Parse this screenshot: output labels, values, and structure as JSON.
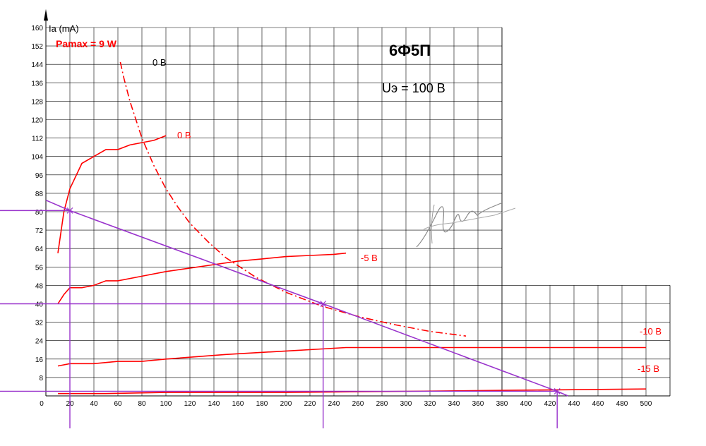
{
  "chart_data": {
    "type": "line",
    "title": "6Ф5П",
    "subtitle": "Uэ = 100 В",
    "ylabel": "Ia (mA)",
    "xlabel": "",
    "xlim": [
      0,
      520
    ],
    "ylim": [
      0,
      160
    ],
    "x_ticks": [
      0,
      20,
      40,
      60,
      80,
      100,
      120,
      140,
      160,
      180,
      200,
      220,
      240,
      260,
      280,
      300,
      320,
      340,
      360,
      380,
      400,
      420,
      440,
      460,
      480,
      500
    ],
    "y_ticks": [
      8,
      16,
      24,
      32,
      40,
      48,
      56,
      64,
      72,
      80,
      88,
      96,
      104,
      112,
      120,
      128,
      136,
      144,
      152,
      160
    ],
    "pmax_label": "Pamax = 9 W",
    "annotation_black_0v": "0 B",
    "colors": {
      "curve": "#ff0000",
      "loadline": "#9933cc",
      "grid": "#000000"
    },
    "series": [
      {
        "name": "0 B",
        "label": "0 B",
        "x": [
          10,
          15,
          20,
          30,
          40,
          50,
          60,
          70,
          80,
          90,
          100
        ],
        "y": [
          62,
          80,
          90,
          101,
          104,
          107,
          107,
          109,
          110,
          111,
          113
        ]
      },
      {
        "name": "-5 B",
        "label": "-5 B",
        "x": [
          10,
          15,
          20,
          30,
          40,
          50,
          60,
          80,
          100,
          120,
          140,
          160,
          180,
          200,
          220,
          240,
          250
        ],
        "y": [
          40,
          44,
          47,
          47,
          48,
          50,
          50,
          52,
          54,
          55.5,
          57,
          58.5,
          59.5,
          60.5,
          61,
          61.5,
          62
        ]
      },
      {
        "name": "-10 B",
        "label": "-10 B",
        "x": [
          10,
          20,
          40,
          60,
          80,
          100,
          150,
          200,
          250,
          300,
          350,
          400,
          500
        ],
        "y": [
          13,
          14,
          14,
          15,
          15,
          16,
          18,
          19.5,
          21,
          21,
          21,
          21,
          21
        ]
      },
      {
        "name": "-15 B",
        "label": "-15 B",
        "x": [
          10,
          50,
          100,
          200,
          300,
          400,
          500
        ],
        "y": [
          1,
          1,
          1.5,
          1.5,
          2,
          2.5,
          3
        ]
      },
      {
        "name": "Pamax = 9 W",
        "label": "Pamax = 9 W",
        "style": "dash-dot",
        "x": [
          62,
          65,
          70,
          75,
          80,
          90,
          100,
          110,
          120,
          135,
          150,
          175,
          200,
          230,
          260,
          290,
          320,
          350
        ],
        "y": [
          145,
          138,
          128,
          120,
          112,
          100,
          90,
          82,
          75,
          67,
          60,
          51.5,
          45,
          39,
          34.5,
          31,
          28,
          26
        ]
      }
    ],
    "load_line": {
      "x": [
        0,
        20,
        231,
        426,
        435
      ],
      "y": [
        85,
        80.5,
        40,
        2,
        0
      ]
    },
    "operating_points": [
      {
        "x": 20,
        "y": 80.5
      },
      {
        "x": 231,
        "y": 40
      },
      {
        "x": 426,
        "y": 2
      }
    ],
    "grid": "Upper region only up to Ua=380, full to 520 below Ia=48"
  }
}
